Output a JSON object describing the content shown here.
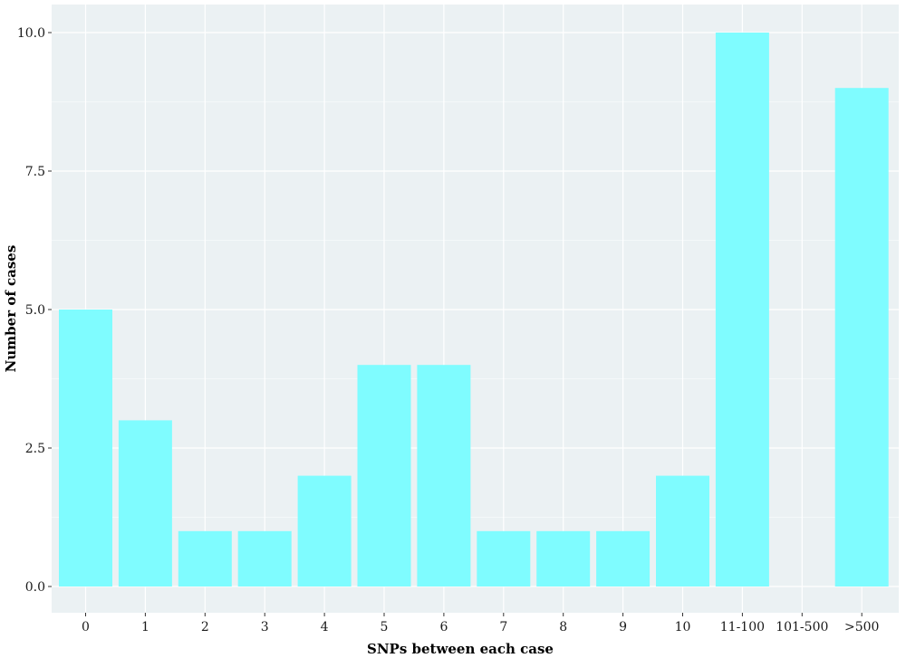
{
  "chart_data": {
    "type": "bar",
    "categories": [
      "0",
      "1",
      "2",
      "3",
      "4",
      "5",
      "6",
      "7",
      "8",
      "9",
      "10",
      "11-100",
      "101-500",
      ">500"
    ],
    "values": [
      5,
      3,
      1,
      1,
      2,
      4,
      4,
      1,
      1,
      1,
      2,
      10,
      0,
      9
    ],
    "title": "",
    "xlabel": "SNPs between each case",
    "ylabel": "Number of cases",
    "ylim": [
      0,
      10
    ],
    "yticks": [
      "0.0",
      "2.5",
      "5.0",
      "7.5",
      "10.0"
    ],
    "ytick_values": [
      0,
      2.5,
      5,
      7.5,
      10
    ],
    "grid": true,
    "legend": "none",
    "colors": {
      "bar": "#7ffcff",
      "panel_background": "#ebf1f3",
      "gridline": "#ffffff"
    }
  }
}
